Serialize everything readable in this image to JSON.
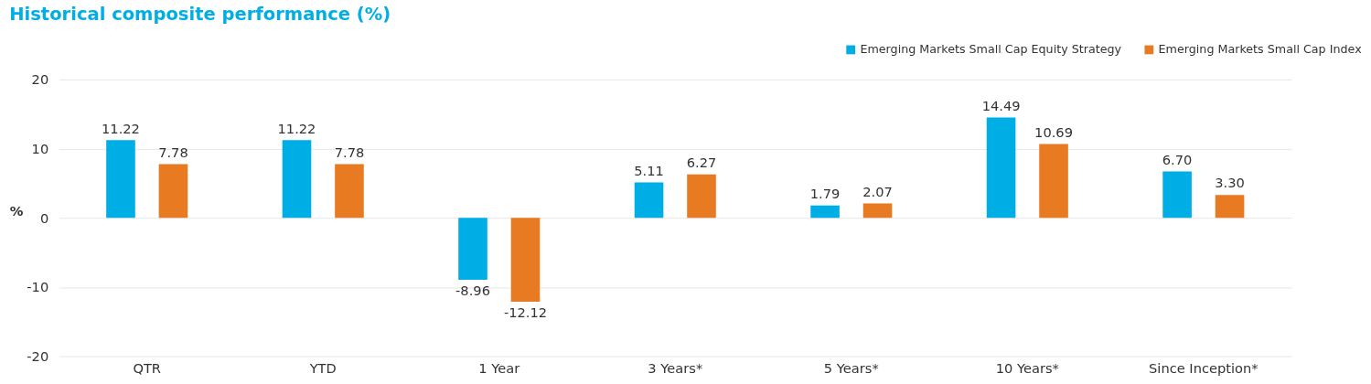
{
  "chart_data": {
    "type": "bar",
    "title": "Historical composite performance (%)",
    "ylabel": "%",
    "categories": [
      "QTR",
      "YTD",
      "1 Year",
      "3 Years*",
      "5 Years*",
      "10 Years*",
      "Since Inception*"
    ],
    "series": [
      {
        "name": "Emerging Markets Small Cap Equity Strategy",
        "color": "#00aee6",
        "values": [
          11.22,
          11.22,
          -8.96,
          5.11,
          1.79,
          14.49,
          6.7
        ],
        "value_labels": [
          "11.22",
          "11.22",
          "-8.96",
          "5.11",
          "1.79",
          "14.49",
          "6.70"
        ]
      },
      {
        "name": "Emerging Markets Small Cap Index",
        "color": "#e87b22",
        "values": [
          7.78,
          7.78,
          -12.12,
          6.27,
          2.07,
          10.69,
          3.3
        ],
        "value_labels": [
          "7.78",
          "7.78",
          "-12.12",
          "6.27",
          "2.07",
          "10.69",
          "3.30"
        ]
      }
    ],
    "ylim": [
      -20,
      20
    ],
    "yticks": [
      -20,
      -10,
      0,
      10,
      20
    ],
    "grid": "y",
    "legend": "top right"
  }
}
